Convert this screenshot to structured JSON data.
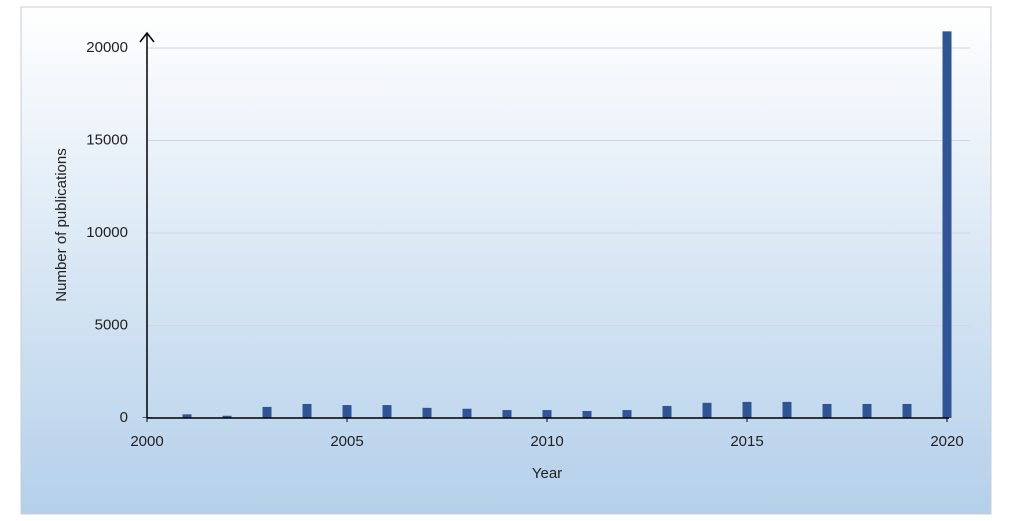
{
  "chart_data": {
    "type": "bar",
    "x_label": "Year",
    "y_label": "Number of publications",
    "x": [
      2000,
      2001,
      2002,
      2003,
      2004,
      2005,
      2006,
      2007,
      2008,
      2009,
      2010,
      2011,
      2012,
      2013,
      2014,
      2015,
      2016,
      2017,
      2018,
      2019,
      2020
    ],
    "values": [
      50,
      200,
      120,
      600,
      760,
      700,
      700,
      550,
      500,
      430,
      430,
      380,
      430,
      650,
      820,
      870,
      870,
      760,
      760,
      760,
      20900
    ],
    "color": "#2f5597",
    "xlim": [
      2000,
      2020
    ],
    "xticks": [
      2000,
      2005,
      2010,
      2015,
      2020
    ],
    "ylim": [
      0,
      21000
    ],
    "yticks": [
      0,
      5000,
      10000,
      15000,
      20000
    ],
    "grid": true
  }
}
